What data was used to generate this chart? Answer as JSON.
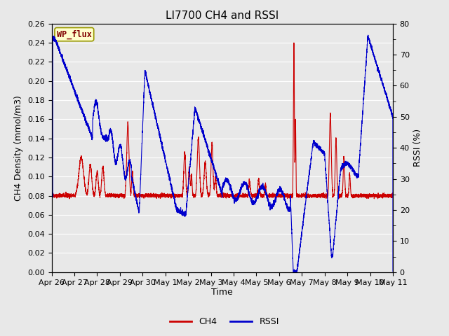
{
  "title": "LI7700 CH4 and RSSI",
  "xlabel": "Time",
  "ylabel_left": "CH4 Density (mmol/m3)",
  "ylabel_right": "RSSI (%)",
  "legend_label": "WP_flux",
  "ylim_left": [
    0.0,
    0.26
  ],
  "ylim_right": [
    0,
    80
  ],
  "yticks_left": [
    0.0,
    0.02,
    0.04,
    0.06,
    0.08,
    0.1,
    0.12,
    0.14,
    0.16,
    0.18,
    0.2,
    0.22,
    0.24,
    0.26
  ],
  "yticks_right": [
    0,
    10,
    20,
    30,
    40,
    50,
    60,
    70,
    80
  ],
  "xtick_labels": [
    "Apr 26",
    "Apr 27",
    "Apr 28",
    "Apr 29",
    "Apr 30",
    "May 1",
    "May 2",
    "May 3",
    "May 4",
    "May 5",
    "May 6",
    "May 7",
    "May 8",
    "May 9",
    "May 10",
    "May 11"
  ],
  "ch4_color": "#cc0000",
  "rssi_color": "#0000cc",
  "bg_color": "#e8e8e8",
  "plot_bg_color": "#e8e8e8",
  "grid_color": "#ffffff",
  "wp_flux_box_color": "#ffffcc",
  "wp_flux_text_color": "#800000",
  "wp_flux_border_color": "#999900",
  "title_fontsize": 11,
  "axis_label_fontsize": 9,
  "tick_fontsize": 8,
  "legend_fontsize": 9
}
